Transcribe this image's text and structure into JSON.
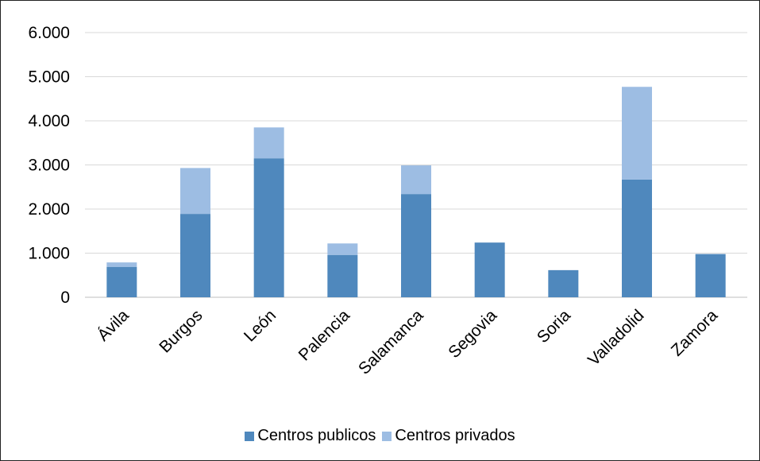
{
  "chart_data": {
    "type": "bar",
    "stacked": true,
    "title": "",
    "xlabel": "",
    "ylabel": "",
    "categories": [
      "Ávila",
      "Burgos",
      "León",
      "Palencia",
      "Salamanca",
      "Segovia",
      "Soria",
      "Valladolid",
      "Zamora"
    ],
    "series": [
      {
        "name": "Centros publicos",
        "color": "#4f88bd",
        "values": [
          690,
          1890,
          3150,
          960,
          2340,
          1240,
          615,
          2670,
          980
        ]
      },
      {
        "name": "Centros privados",
        "color": "#9dbde3",
        "values": [
          100,
          1040,
          700,
          260,
          650,
          0,
          0,
          2100,
          0
        ]
      }
    ],
    "ylim": [
      0,
      6000
    ],
    "yticks": [
      {
        "value": 0,
        "label": "0"
      },
      {
        "value": 1000,
        "label": "1.000"
      },
      {
        "value": 2000,
        "label": "2.000"
      },
      {
        "value": 3000,
        "label": "3.000"
      },
      {
        "value": 4000,
        "label": "4.000"
      },
      {
        "value": 5000,
        "label": "5.000"
      },
      {
        "value": 6000,
        "label": "6.000"
      }
    ],
    "grid": true,
    "legend_position": "bottom"
  }
}
